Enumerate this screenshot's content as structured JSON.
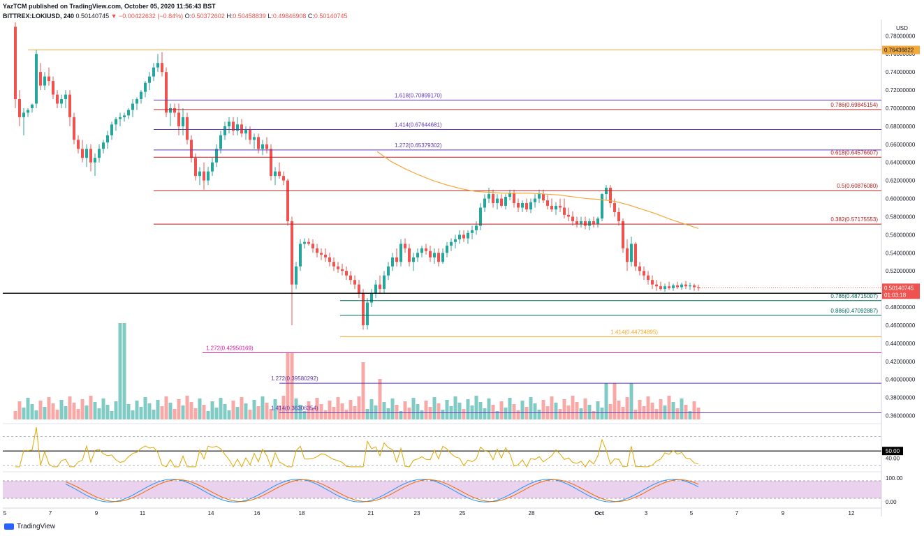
{
  "header": {
    "line1": "YazTCM published on TradingView.com, October 05, 2020 11:56:43 BST",
    "symbol": "BITTREX:LOKIUSD, 240",
    "last": "0.50140745",
    "arrow": "▼",
    "change": "−0.00422632 (−0.84%)",
    "o_label": "O:",
    "o": "0.50372602",
    "h_label": "H:",
    "h": "0.50458839",
    "l_label": "L:",
    "l": "0.49846908",
    "c_label": "C:",
    "c": "0.50140745"
  },
  "footer": {
    "brand": "TradingView"
  },
  "colors": {
    "up": "#26a69a",
    "down": "#ef5350",
    "vol_up": "#80cbc4",
    "vol_down": "#f7a9a7",
    "fib_red": "#b71c1c",
    "fib_purple": "#5e35b1",
    "fib_teal": "#00695c",
    "fib_orange": "#f9a825",
    "fib_magenta": "#d81b9c",
    "ma": "#f2a93b",
    "stoch_bg": "#e1bee7",
    "rsi": "#e0a800"
  },
  "chart_data": {
    "type": "line",
    "subtype": "candlestick",
    "currency": "USD",
    "ylim": [
      0.355,
      0.798
    ],
    "x_tick_labels": [
      "5",
      "7",
      "9",
      "11",
      "14",
      "16",
      "18",
      "21",
      "23",
      "25",
      "28",
      "Oct",
      "3",
      "5",
      "7",
      "9",
      "12"
    ],
    "y_tick_labels": [
      "0.78000000",
      "0.76000000",
      "0.74000000",
      "0.72000000",
      "0.70000000",
      "0.68000000",
      "0.66000000",
      "0.64000000",
      "0.62000000",
      "0.60000000",
      "0.58000000",
      "0.56000000",
      "0.54000000",
      "0.52000000",
      "0.50000000",
      "0.48000000",
      "0.46000000",
      "0.44000000",
      "0.42000000",
      "0.40000000",
      "0.38000000",
      "0.36000000"
    ],
    "y_ticks": [
      0.78,
      0.76,
      0.74,
      0.72,
      0.7,
      0.68,
      0.66,
      0.64,
      0.62,
      0.6,
      0.58,
      0.56,
      0.54,
      0.52,
      0.5,
      0.48,
      0.46,
      0.44,
      0.42,
      0.4,
      0.38,
      0.36
    ],
    "fib_levels": [
      {
        "label": "1.618(0.70899170)",
        "value": 0.7089917,
        "color": "purple",
        "text_align": "left"
      },
      {
        "label": "0.786(0.69845154)",
        "value": 0.69845154,
        "color": "red",
        "text_align": "right"
      },
      {
        "label": "1.414(0.67644681)",
        "value": 0.67644681,
        "color": "purple",
        "text_align": "left"
      },
      {
        "label": "1.272(0.65379302)",
        "value": 0.65379302,
        "color": "purple",
        "text_align": "left"
      },
      {
        "label": "0.618(0.64576607)",
        "value": 0.64576607,
        "color": "red",
        "text_align": "right"
      },
      {
        "label": "0.5(0.60876080)",
        "value": 0.6087608,
        "color": "red",
        "text_align": "right"
      },
      {
        "label": "0.382(0.57175553)",
        "value": 0.57175553,
        "color": "red",
        "text_align": "right"
      },
      {
        "label": "0.786(0.48715007)",
        "value": 0.48715007,
        "color": "teal",
        "text_align": "right"
      },
      {
        "label": "0.886(0.47092887)",
        "value": 0.47092887,
        "color": "teal",
        "text_align": "right"
      },
      {
        "label": "1.414(0.44734895)",
        "value": 0.44734895,
        "color": "orange",
        "text_align": "right"
      },
      {
        "label": "1.272(0.42950169)",
        "value": 0.42950169,
        "color": "magenta",
        "text_align": "left"
      },
      {
        "label": "1.272(0.39580292)",
        "value": 0.39580292,
        "color": "purple",
        "text_align": "left"
      },
      {
        "label": "1.414(0.36306354)",
        "value": 0.36306354,
        "color": "purple",
        "text_align": "left"
      }
    ],
    "resistance_top": {
      "value": 0.76436822,
      "label": "0.76436822"
    },
    "support_black": {
      "value": 0.4953302,
      "label": "0.49533020"
    },
    "last_price": {
      "value": 0.50140745,
      "label": "0.50140745",
      "countdown": "01:03:18"
    },
    "ma_curve": [
      [
        540,
        0.652
      ],
      [
        560,
        0.641
      ],
      [
        580,
        0.633
      ],
      [
        600,
        0.626
      ],
      [
        620,
        0.62
      ],
      [
        640,
        0.615
      ],
      [
        660,
        0.611
      ],
      [
        680,
        0.608
      ],
      [
        700,
        0.607
      ],
      [
        720,
        0.606
      ],
      [
        740,
        0.606
      ],
      [
        760,
        0.606
      ],
      [
        780,
        0.605
      ],
      [
        800,
        0.604
      ],
      [
        820,
        0.602
      ],
      [
        840,
        0.6
      ],
      [
        860,
        0.599
      ],
      [
        880,
        0.597
      ],
      [
        900,
        0.593
      ],
      [
        920,
        0.588
      ],
      [
        940,
        0.583
      ],
      [
        960,
        0.577
      ],
      [
        980,
        0.572
      ],
      [
        1000,
        0.567
      ]
    ],
    "rsi": {
      "midline": "50.00",
      "midline_value": 50,
      "ticks": [
        "40.00"
      ],
      "lims": [
        25,
        85
      ]
    },
    "stoch": {
      "ticks": [
        "100.00",
        "0.00"
      ]
    }
  }
}
